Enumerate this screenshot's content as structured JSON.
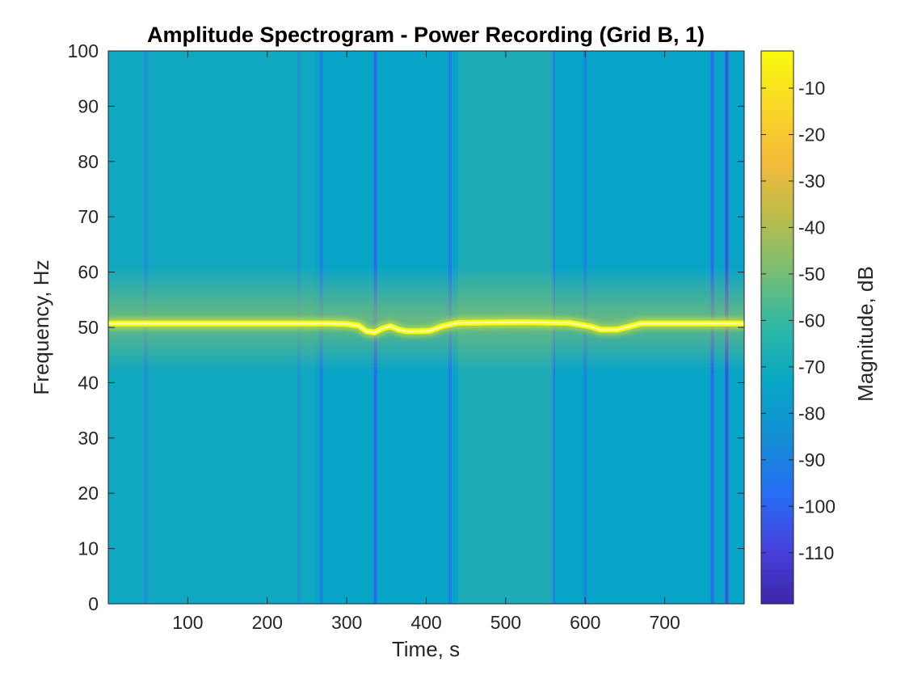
{
  "chart_data": {
    "type": "heatmap",
    "title": "Amplitude Spectrogram - Power Recording (Grid B, 1)",
    "xlabel": "Time, s",
    "ylabel": "Frequency, Hz",
    "colorbar_label": "Magnitude, dB",
    "xlim": [
      0,
      800
    ],
    "ylim": [
      0,
      100
    ],
    "clim": [
      -121,
      -2
    ],
    "x_ticks": [
      100,
      200,
      300,
      400,
      500,
      600,
      700
    ],
    "y_ticks": [
      0,
      10,
      20,
      30,
      40,
      50,
      60,
      70,
      80,
      90,
      100
    ],
    "colorbar_ticks": [
      -110,
      -100,
      -90,
      -80,
      -70,
      -60,
      -50,
      -40,
      -30,
      -20,
      -10
    ],
    "colormap": "parula",
    "background_level_db": -75,
    "dark_bands": [
      {
        "time": 47,
        "level_db": -95
      },
      {
        "time": 240,
        "level_db": -90
      },
      {
        "time": 268,
        "level_db": -92
      },
      {
        "time": 336,
        "level_db": -100
      },
      {
        "time": 430,
        "level_db": -95
      },
      {
        "time": 560,
        "level_db": -95
      },
      {
        "time": 600,
        "level_db": -90
      },
      {
        "time": 760,
        "level_db": -100
      },
      {
        "time": 778,
        "level_db": -108
      }
    ],
    "bright_regions": [
      {
        "time_start": 440,
        "time_end": 560,
        "level_db": -58
      },
      {
        "time_start": 0,
        "time_end": 260,
        "level_db": -66
      }
    ],
    "series": [
      {
        "name": "",
        "level_db": -2,
        "x": [
          0,
          100,
          200,
          280,
          300,
          315,
          325,
          335,
          345,
          355,
          365,
          375,
          390,
          405,
          420,
          440,
          500,
          530,
          580,
          605,
          620,
          640,
          655,
          670,
          700,
          800
        ],
        "y": [
          50.7,
          50.7,
          50.7,
          50.7,
          50.6,
          50.3,
          49.3,
          49.1,
          49.8,
          50.2,
          49.6,
          49.3,
          49.3,
          49.4,
          50.2,
          50.8,
          50.9,
          50.9,
          50.8,
          50.2,
          49.6,
          49.6,
          50.1,
          50.7,
          50.7,
          50.7
        ]
      }
    ]
  }
}
